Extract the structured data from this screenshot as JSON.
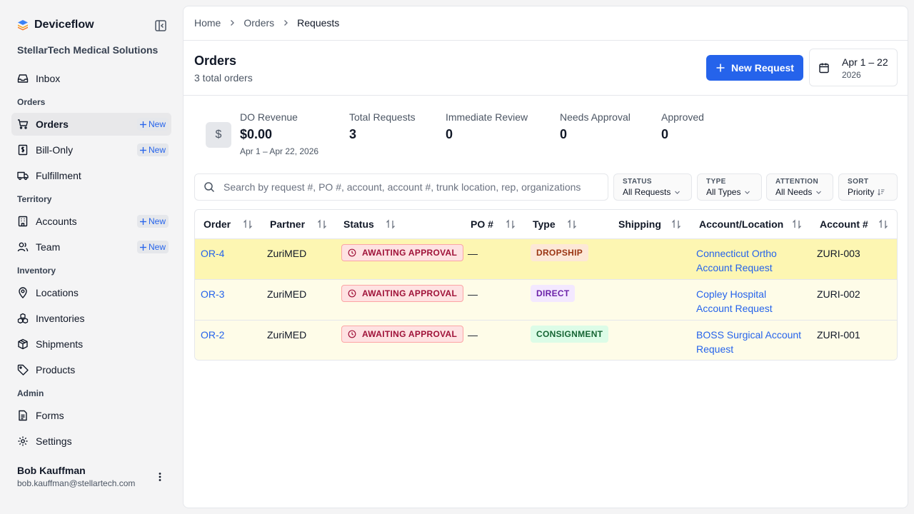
{
  "app": {
    "brand": "Deviceflow",
    "org": "StellarTech Medical Solutions",
    "new_tag": "New"
  },
  "nav": {
    "inbox": "Inbox",
    "sec_orders": "Orders",
    "orders": "Orders",
    "bill_only": "Bill-Only",
    "fulfillment": "Fulfillment",
    "sec_territory": "Territory",
    "accounts": "Accounts",
    "team": "Team",
    "sec_inventory": "Inventory",
    "locations": "Locations",
    "inventories": "Inventories",
    "shipments": "Shipments",
    "products": "Products",
    "sec_admin": "Admin",
    "forms": "Forms",
    "settings": "Settings"
  },
  "user": {
    "name": "Bob Kauffman",
    "email": "bob.kauffman@stellartech.com"
  },
  "breadcrumb": [
    "Home",
    "Orders",
    "Requests"
  ],
  "page": {
    "title": "Orders",
    "subtitle": "3 total orders",
    "new_button": "New Request",
    "date_range": "Apr 1 – 22",
    "date_year": "2026"
  },
  "stats": {
    "currency_symbol": "$",
    "revenue_label": "DO Revenue",
    "revenue_value": "$0.00",
    "revenue_sub": "Apr 1 – Apr 22, 2026",
    "total_label": "Total Requests",
    "total_value": "3",
    "immediate_label": "Immediate Review",
    "immediate_value": "0",
    "needs_label": "Needs Approval",
    "needs_value": "0",
    "approved_label": "Approved",
    "approved_value": "0"
  },
  "search": {
    "placeholder": "Search by request #, PO #, account, account #, trunk location, rep, organizations"
  },
  "filters": {
    "status_label": "STATUS",
    "status_value": "All Requests",
    "type_label": "TYPE",
    "type_value": "All Types",
    "attention_label": "ATTENTION",
    "attention_value": "All Needs",
    "sort_label": "SORT",
    "sort_value": "Priority"
  },
  "table": {
    "headers": [
      "Order",
      "Partner",
      "Status",
      "PO #",
      "Type",
      "Shipping",
      "Account/Location",
      "Account #"
    ],
    "rows": [
      {
        "order": "OR-4",
        "partner": "ZuriMED",
        "status": "AWAITING APPROVAL",
        "po": "—",
        "type": "DROPSHIP",
        "shipping": "",
        "account_l1": "Connecticut Ortho",
        "account_l2": "Account Request",
        "account_no": "ZURI-003"
      },
      {
        "order": "OR-3",
        "partner": "ZuriMED",
        "status": "AWAITING APPROVAL",
        "po": "—",
        "type": "DIRECT",
        "shipping": "",
        "account_l1": "Copley Hospital",
        "account_l2": "Account Request",
        "account_no": "ZURI-002"
      },
      {
        "order": "OR-2",
        "partner": "ZuriMED",
        "status": "AWAITING APPROVAL",
        "po": "—",
        "type": "CONSIGNMENT",
        "shipping": "",
        "account_l1": "BOSS Surgical Account",
        "account_l2": "Request",
        "account_no": "ZURI-001"
      }
    ]
  },
  "colors": {
    "accent": "#2563eb",
    "row_highlight": "#fdf6b2",
    "row_bg": "#fefce8",
    "awaiting_bg": "#fee2e2",
    "dropship_bg": "#fde8d7",
    "direct_bg": "#f3e8ff",
    "consignment_bg": "#dcfce7"
  },
  "icons": [
    "deviceflow-logo-icon",
    "sidebar-collapse-icon",
    "inbox-icon",
    "cart-icon",
    "receipt-icon",
    "truck-icon",
    "building-icon",
    "users-icon",
    "map-pin-icon",
    "boxes-icon",
    "package-icon",
    "tag-icon",
    "file-text-icon",
    "gear-icon",
    "kebab-icon",
    "chevron-right-icon",
    "plus-icon",
    "calendar-icon",
    "dollar-icon",
    "search-icon",
    "chevron-down-icon",
    "sort-lines-icon",
    "sort-arrows-icon",
    "clock-icon"
  ]
}
